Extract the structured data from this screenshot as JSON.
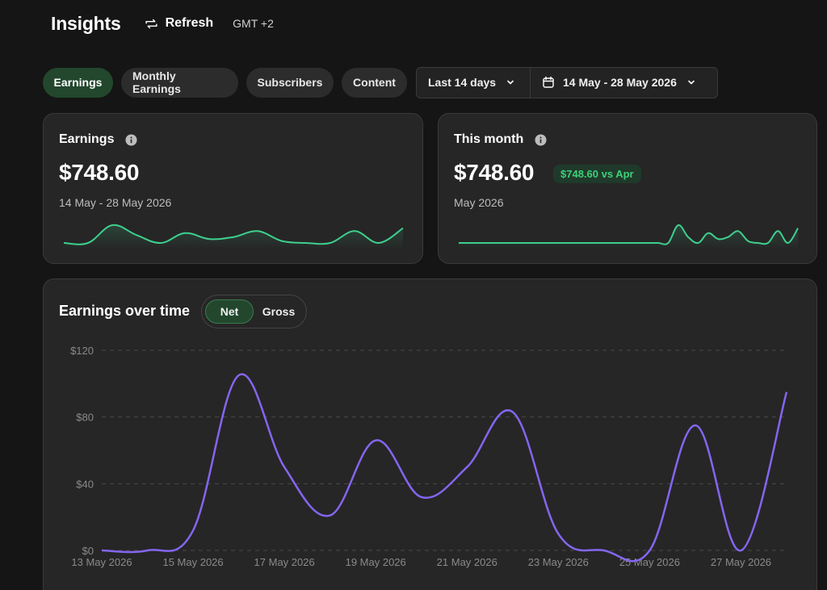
{
  "header": {
    "title": "Insights",
    "refresh_label": "Refresh",
    "timezone": "GMT +2"
  },
  "filters": {
    "tabs": [
      {
        "label": "Earnings",
        "active": true
      },
      {
        "label": "Monthly Earnings",
        "active": false
      },
      {
        "label": "Subscribers",
        "active": false
      },
      {
        "label": "Content",
        "active": false
      }
    ],
    "range_select": "Last 14 days",
    "date_range": "14 May - 28 May 2026"
  },
  "cards": {
    "earnings": {
      "title": "Earnings",
      "value": "$748.60",
      "subtitle": "14 May - 28 May 2026",
      "sparkline": [
        0,
        0,
        18,
        8,
        0,
        10,
        4,
        6,
        12,
        2,
        0,
        0,
        12,
        0,
        15
      ]
    },
    "this_month": {
      "title": "This month",
      "value": "$748.60",
      "badge": "$748.60 vs Apr",
      "subtitle": "May 2026",
      "sparkline": [
        0,
        0,
        0,
        0,
        0,
        0,
        0,
        0,
        0,
        0,
        0,
        0,
        0,
        0,
        0,
        0,
        0,
        0,
        0,
        0,
        0,
        0,
        18,
        6,
        0,
        10,
        4,
        6,
        12,
        2,
        0,
        0,
        12,
        0,
        15
      ]
    }
  },
  "chart_section": {
    "title": "Earnings over time",
    "toggle": {
      "on": "Net",
      "off": "Gross"
    }
  },
  "colors": {
    "accent_green": "#3ecf8e",
    "line_purple": "#8466f0",
    "active_green_bg": "#22472d"
  },
  "chart_data": {
    "type": "line",
    "x": [
      "13 May 2026",
      "14 May 2026",
      "15 May 2026",
      "16 May 2026",
      "17 May 2026",
      "18 May 2026",
      "19 May 2026",
      "20 May 2026",
      "21 May 2026",
      "22 May 2026",
      "23 May 2026",
      "24 May 2026",
      "25 May 2026",
      "26 May 2026",
      "27 May 2026",
      "28 May 2026"
    ],
    "x_tick_labels": [
      "13 May 2026",
      "15 May 2026",
      "17 May 2026",
      "19 May 2026",
      "21 May 2026",
      "23 May 2026",
      "25 May 2026",
      "27 May 2026"
    ],
    "series": [
      {
        "values": [
          0,
          0,
          12,
          105,
          50,
          21,
          66,
          32,
          50,
          83,
          10,
          0,
          0,
          75,
          0,
          95
        ]
      }
    ],
    "y_tick_labels": [
      "$0",
      "$40",
      "$80",
      "$120"
    ],
    "ylim": [
      0,
      120
    ],
    "grid": true
  }
}
